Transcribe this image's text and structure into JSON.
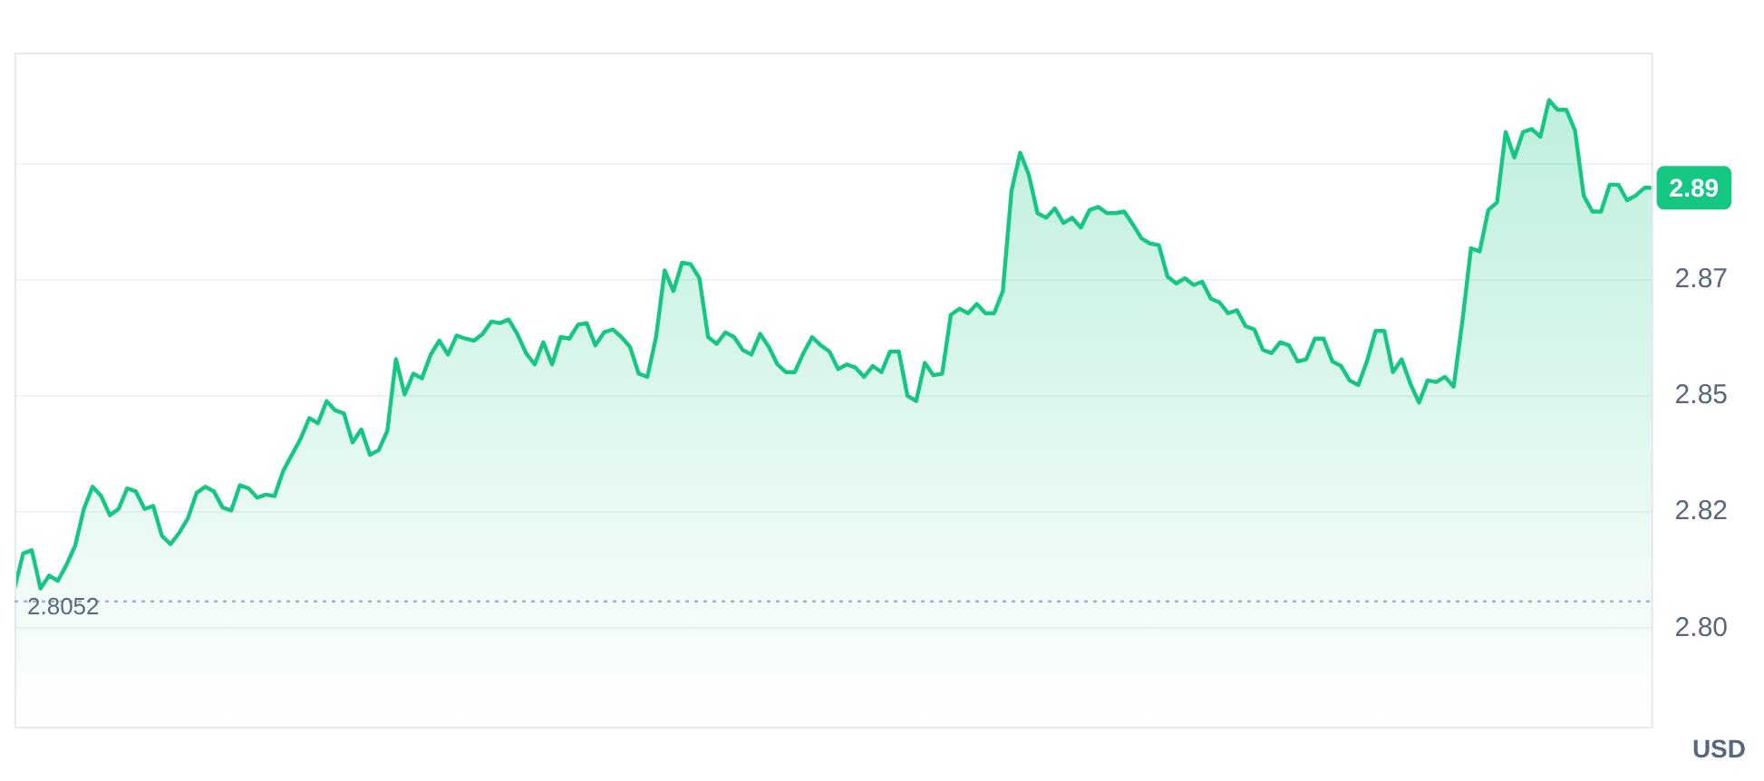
{
  "chart_data": {
    "type": "area",
    "categories": [
      null,
      null,
      null,
      null,
      null,
      null,
      null,
      null,
      null,
      null,
      null,
      null,
      null,
      null,
      null,
      null,
      null,
      null,
      null,
      null,
      null,
      null,
      null,
      null,
      null,
      null,
      null,
      null,
      null,
      null,
      null,
      null,
      null,
      null,
      null,
      null,
      null,
      null,
      null,
      null,
      null,
      null,
      null,
      null,
      null,
      null,
      null,
      null,
      null,
      null,
      null,
      null,
      null,
      null,
      null,
      null,
      null,
      null,
      null,
      null,
      null,
      null,
      null,
      null,
      null,
      null,
      null,
      null,
      null,
      null,
      null,
      null,
      null,
      null,
      null,
      null,
      null,
      null,
      null,
      null,
      null,
      null,
      null,
      null,
      null,
      null,
      null,
      null,
      null,
      null,
      null,
      null,
      null,
      null,
      null,
      null,
      null,
      null,
      null,
      null,
      null,
      null,
      null,
      null,
      null,
      null,
      null,
      null,
      null,
      null,
      null,
      null,
      null,
      null,
      null,
      null,
      null,
      null,
      null,
      null,
      null,
      null,
      null,
      null,
      null,
      null,
      null,
      null,
      null,
      null,
      null,
      null,
      null,
      null,
      null,
      null,
      null,
      null,
      null,
      null,
      null,
      null,
      null,
      null,
      null,
      null,
      null,
      null,
      null,
      null,
      null,
      null,
      null,
      null,
      null,
      null,
      null,
      null,
      null,
      null,
      null,
      null,
      null,
      null,
      null,
      null,
      null,
      null,
      null,
      null,
      null,
      null,
      null,
      null,
      null,
      null,
      null,
      null,
      null,
      null,
      null,
      null,
      null,
      null,
      null,
      null,
      null,
      null,
      null,
      null
    ],
    "series": [
      {
        "color": "#16c784",
        "values": [
          2.8077,
          2.8145,
          2.8151,
          2.8077,
          2.8102,
          2.8092,
          2.8123,
          2.816,
          2.8231,
          2.8274,
          2.8256,
          2.8219,
          2.8231,
          2.8271,
          2.8265,
          2.8231,
          2.8237,
          2.8179,
          2.8163,
          2.8185,
          2.8213,
          2.8262,
          2.8274,
          2.8265,
          2.8234,
          2.8228,
          2.8277,
          2.8271,
          2.8253,
          2.8259,
          2.8256,
          2.8305,
          2.8336,
          2.8367,
          2.8407,
          2.8397,
          2.844,
          2.8422,
          2.8416,
          2.836,
          2.8385,
          2.8336,
          2.8345,
          2.8382,
          2.8521,
          2.8453,
          2.8493,
          2.8484,
          2.853,
          2.8557,
          2.853,
          2.8567,
          2.8561,
          2.8557,
          2.857,
          2.8594,
          2.8591,
          2.8598,
          2.857,
          2.8533,
          2.8511,
          2.8554,
          2.8511,
          2.8564,
          2.8561,
          2.8588,
          2.8591,
          2.8548,
          2.8573,
          2.8579,
          2.8564,
          2.8545,
          2.8493,
          2.8487,
          2.8564,
          2.8693,
          2.8653,
          2.8708,
          2.8705,
          2.8678,
          2.8564,
          2.8551,
          2.8573,
          2.8564,
          2.8539,
          2.853,
          2.857,
          2.8545,
          2.8511,
          2.8496,
          2.8496,
          2.8533,
          2.8564,
          2.8548,
          2.8536,
          2.8502,
          2.8511,
          2.8505,
          2.8487,
          2.8508,
          2.8496,
          2.8536,
          2.8536,
          2.845,
          2.844,
          2.8514,
          2.849,
          2.8493,
          2.8607,
          2.8619,
          2.861,
          2.8628,
          2.861,
          2.861,
          2.8653,
          2.8847,
          2.8921,
          2.8878,
          2.8804,
          2.8795,
          2.8813,
          2.8785,
          2.8795,
          2.8776,
          2.881,
          2.8816,
          2.8804,
          2.8804,
          2.8807,
          2.8782,
          2.8755,
          2.8745,
          2.8742,
          2.8681,
          2.8668,
          2.8678,
          2.8665,
          2.8671,
          2.8638,
          2.8631,
          2.861,
          2.8616,
          2.8585,
          2.8579,
          2.8539,
          2.8533,
          2.8554,
          2.8548,
          2.8517,
          2.8521,
          2.8561,
          2.8561,
          2.8517,
          2.8508,
          2.848,
          2.8471,
          2.8517,
          2.8576,
          2.8576,
          2.8496,
          2.8521,
          2.8474,
          2.8437,
          2.848,
          2.8477,
          2.8487,
          2.8468,
          2.8594,
          2.8736,
          2.873,
          2.881,
          2.8825,
          2.8961,
          2.8912,
          2.8961,
          2.8967,
          2.8952,
          2.9023,
          2.9004,
          2.9004,
          2.8964,
          2.8838,
          2.8807,
          2.8807,
          2.8859,
          2.8859,
          2.8829,
          2.8838,
          2.8853,
          2.8853
        ]
      }
    ],
    "ylim": [
      2.7806,
      2.9115
    ],
    "yticks": [
      {
        "value": 2.8,
        "label": "2.80"
      },
      {
        "value": 2.8225,
        "label": "2.82"
      },
      {
        "value": 2.845,
        "label": "2.85"
      },
      {
        "value": 2.8675,
        "label": "2.87"
      },
      {
        "value": 2.89,
        "label": null
      }
    ],
    "ylabel": "USD",
    "tick_labels": "y",
    "grid": "y",
    "legend": false,
    "marker": "none",
    "line_style": "solid",
    "ref_lines": [
      {
        "axis": "y",
        "value": 2.8052,
        "label": "2.8052",
        "line_style": "dotted",
        "color": "#a6b0c3"
      }
    ],
    "annotations": [
      {
        "text": "2.89",
        "y": 2.8853
      }
    ]
  }
}
